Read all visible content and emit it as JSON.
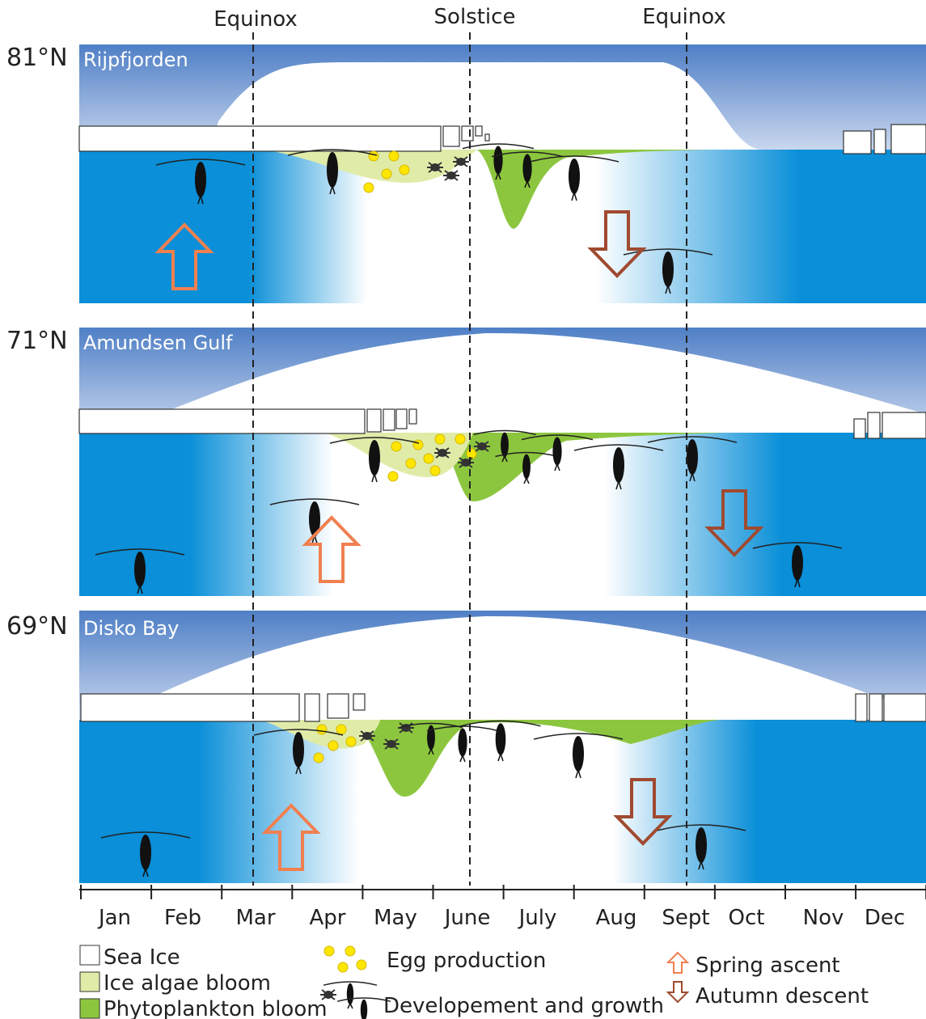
{
  "header": {
    "markers": [
      "Equinox",
      "Solstice",
      "Equinox"
    ]
  },
  "panels": [
    {
      "latitude": "81°N",
      "site": "Rijpfjorden"
    },
    {
      "latitude": "71°N",
      "site": "Amundsen Gulf"
    },
    {
      "latitude": "69°N",
      "site": "Disko Bay"
    }
  ],
  "months": [
    "Jan",
    "Feb",
    "Mar",
    "Apr",
    "May",
    "June",
    "July",
    "Aug",
    "Sept",
    "Oct",
    "Nov",
    "Dec"
  ],
  "legend": {
    "sea_ice": "Sea Ice",
    "ice_algae": "Ice algae bloom",
    "phytoplankton": "Phytoplankton bloom",
    "eggs": "Egg production",
    "growth": "Developement and growth",
    "ascent": "Spring ascent",
    "descent": "Autumn descent"
  }
}
